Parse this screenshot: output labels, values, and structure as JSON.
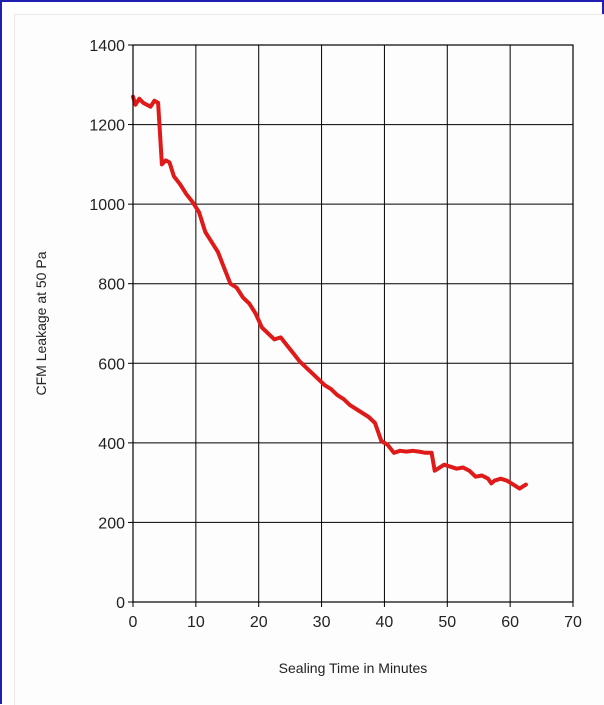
{
  "chart_data": {
    "type": "line",
    "title": "",
    "xlabel": "Sealing Time in Minutes",
    "ylabel": "CFM Leakage at 50 Pa",
    "xlim": [
      0,
      70
    ],
    "ylim": [
      0,
      1400
    ],
    "x_ticks": [
      "0",
      "10",
      "20",
      "30",
      "40",
      "50",
      "60",
      "70"
    ],
    "y_ticks": [
      "0",
      "200",
      "400",
      "600",
      "800",
      "1000",
      "1200",
      "1400"
    ],
    "grid": true,
    "legend": "none",
    "series": [
      {
        "color": "#e01919",
        "x": [
          0,
          0.4,
          1,
          1.6,
          2.2,
          2.8,
          3.4,
          4,
          4.6,
          5.2,
          5.8,
          6.5,
          7.5,
          8.5,
          9.5,
          10.5,
          11.5,
          12.5,
          13.5,
          14.5,
          15.5,
          16.5,
          17.5,
          18.5,
          19.5,
          20.5,
          21.5,
          22.5,
          23.5,
          24.5,
          25.5,
          26.5,
          27.5,
          28.5,
          29.5,
          30.5,
          31.5,
          32.5,
          33.5,
          34.5,
          35.5,
          36.5,
          37.5,
          38.5,
          39.5,
          40,
          40.5,
          41.5,
          42.5,
          43.5,
          44.5,
          45.5,
          46.5,
          47.5,
          48,
          48.5,
          49.5,
          50.5,
          51.5,
          52.5,
          53.5,
          54.5,
          55.5,
          56.5,
          57,
          57.5,
          58.5,
          59.5,
          60.5,
          61.5,
          62,
          62.5
        ],
        "values": [
          1270,
          1250,
          1265,
          1255,
          1250,
          1245,
          1260,
          1255,
          1100,
          1110,
          1105,
          1070,
          1050,
          1025,
          1005,
          980,
          930,
          905,
          880,
          840,
          800,
          790,
          765,
          750,
          725,
          690,
          675,
          660,
          665,
          645,
          625,
          605,
          590,
          575,
          560,
          545,
          535,
          520,
          510,
          495,
          485,
          475,
          465,
          450,
          405,
          400,
          395,
          375,
          380,
          378,
          380,
          378,
          375,
          375,
          330,
          335,
          345,
          340,
          335,
          338,
          330,
          315,
          318,
          310,
          298,
          305,
          310,
          305,
          295,
          285,
          290,
          295
        ]
      }
    ]
  }
}
